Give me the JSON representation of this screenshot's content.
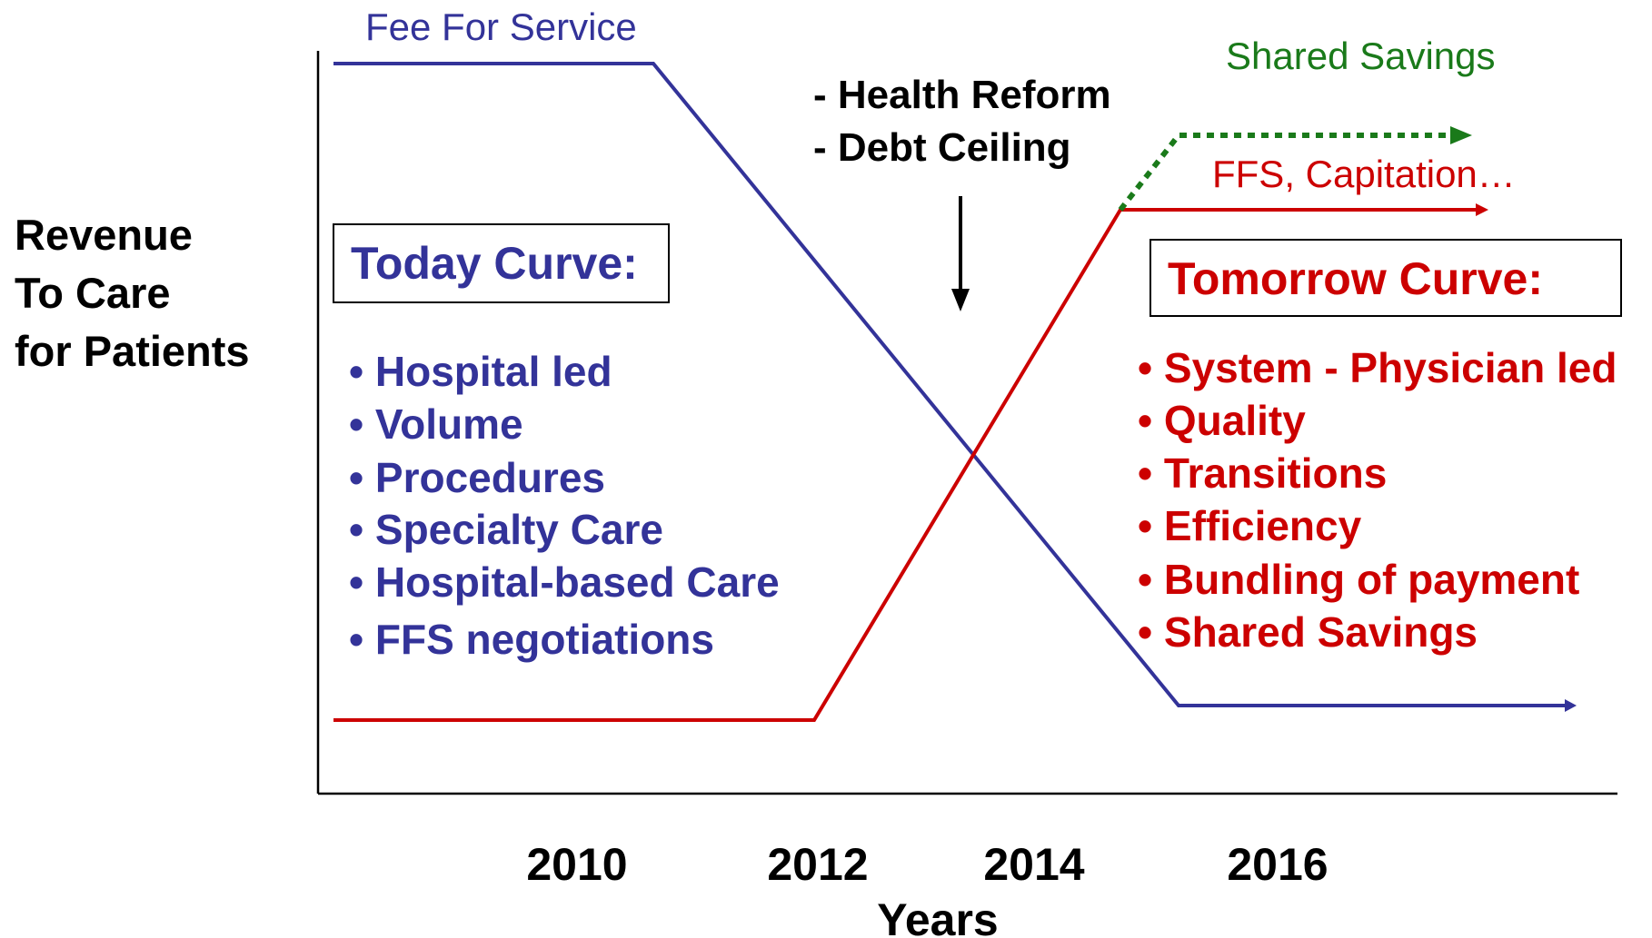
{
  "y_axis_label": [
    "Revenue",
    "To Care",
    "for Patients"
  ],
  "x_axis_label": "Years",
  "years": [
    "2010",
    "2012",
    "2014",
    "2016"
  ],
  "today_line_label": "Fee For Service",
  "shared_savings_label": "Shared Savings",
  "tomorrow_line_label": "FFS, Capitation…",
  "events": [
    "- Health Reform",
    "- Debt Ceiling"
  ],
  "today": {
    "title": "Today Curve:",
    "items": [
      "• Hospital led",
      "• Volume",
      "• Procedures",
      "• Specialty Care",
      "• Hospital-based Care",
      "• FFS negotiations"
    ]
  },
  "tomorrow": {
    "title": "Tomorrow Curve:",
    "items": [
      "• System - Physician led",
      "• Quality",
      "• Transitions",
      "• Efficiency",
      "• Bundling of payment",
      "• Shared Savings"
    ]
  }
}
